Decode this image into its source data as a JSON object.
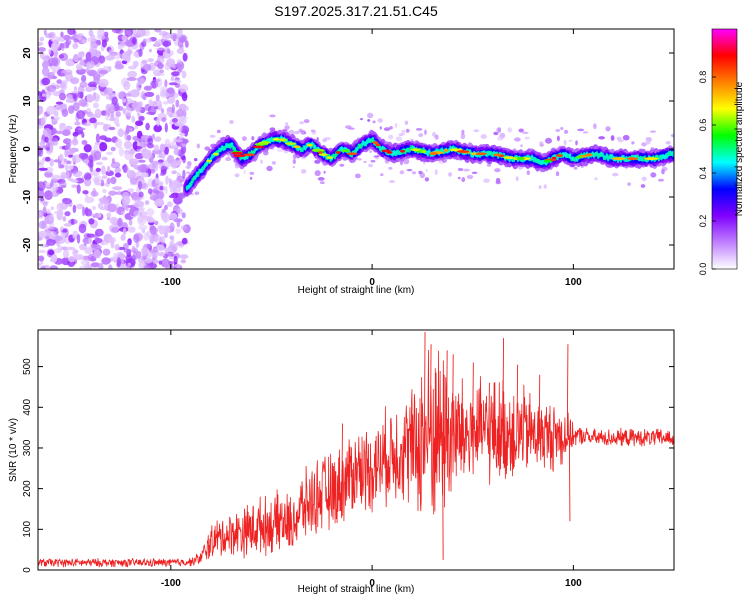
{
  "title": "S197.2025.317.21.51.C45",
  "chart_data": [
    {
      "type": "heatmap",
      "title": "",
      "xlabel": "Height of straight line (km)",
      "ylabel": "Frequency (Hz)",
      "xlim": [
        -166,
        150
      ],
      "ylim": [
        -25,
        25
      ],
      "x_ticks": [
        -100,
        0,
        100
      ],
      "x_tick_labels": [
        "-100",
        "0",
        "100"
      ],
      "y_ticks": [
        -20,
        -10,
        0,
        10,
        20
      ],
      "y_tick_labels": [
        "-20",
        "-10",
        "0",
        "10",
        "20"
      ],
      "ridge": {
        "x": [
          -92,
          -88,
          -84,
          -80,
          -75,
          -70,
          -65,
          -60,
          -55,
          -50,
          -45,
          -40,
          -35,
          -30,
          -25,
          -20,
          -15,
          -10,
          -5,
          0,
          5,
          10,
          20,
          30,
          40,
          50,
          60,
          70,
          80,
          85,
          90,
          95,
          100,
          110,
          120,
          130,
          140,
          150
        ],
        "y": [
          -8,
          -6,
          -4,
          -2,
          0,
          1,
          -2,
          -1,
          1,
          2,
          2,
          1,
          0,
          1,
          -1,
          -2,
          0,
          -1,
          1,
          2,
          0,
          -1,
          0,
          -1,
          0,
          -1,
          -1,
          -2,
          -2,
          -3,
          -2,
          -1,
          -2,
          -1,
          -2,
          -2,
          -2,
          -1
        ]
      },
      "colorbar": {
        "label": "Normalized spectral amplitude",
        "range": [
          0,
          1
        ],
        "ticks": [
          0,
          0.2,
          0.4,
          0.6,
          0.8
        ],
        "tick_labels": [
          "0.0",
          "0.2",
          "0.4",
          "0.6",
          "0.8"
        ],
        "colors": [
          "#ffffff",
          "#c080ff",
          "#8000ff",
          "#0000ff",
          "#00ffff",
          "#00ff00",
          "#ffff00",
          "#ff8000",
          "#ff0000",
          "#ff00ff"
        ]
      }
    },
    {
      "type": "line",
      "title": "",
      "xlabel": "Height of straight line (km)",
      "ylabel": "SNR (10 * v/v)",
      "xlim": [
        -166,
        150
      ],
      "ylim": [
        0,
        590
      ],
      "x_ticks": [
        -100,
        0,
        100
      ],
      "x_tick_labels": [
        "-100",
        "0",
        "100"
      ],
      "y_ticks": [
        0,
        100,
        200,
        300,
        400,
        500
      ],
      "y_tick_labels": [
        "0",
        "100",
        "200",
        "300",
        "400",
        "500"
      ],
      "series": [
        {
          "name": "SNR",
          "color": "#ee2222",
          "x": [
            -166,
            -160,
            -150,
            -140,
            -130,
            -120,
            -110,
            -100,
            -90,
            -85,
            -80,
            -75,
            -70,
            -65,
            -60,
            -55,
            -50,
            -45,
            -40,
            -35,
            -30,
            -25,
            -20,
            -15,
            -10,
            -5,
            0,
            5,
            10,
            15,
            20,
            25,
            30,
            35,
            40,
            45,
            50,
            55,
            60,
            65,
            70,
            75,
            80,
            85,
            90,
            95,
            100,
            105,
            110,
            115,
            120,
            125,
            130,
            135,
            140,
            145,
            150
          ],
          "base": [
            18,
            18,
            18,
            18,
            18,
            18,
            18,
            18,
            20,
            30,
            70,
            80,
            90,
            95,
            100,
            110,
            110,
            120,
            110,
            150,
            170,
            190,
            190,
            210,
            240,
            250,
            250,
            270,
            290,
            300,
            300,
            320,
            340,
            340,
            330,
            330,
            340,
            340,
            340,
            340,
            340,
            340,
            335,
            330,
            330,
            330,
            330,
            330,
            325,
            325,
            325,
            325,
            325,
            325,
            325,
            325,
            325
          ],
          "amp": [
            12,
            12,
            12,
            12,
            12,
            12,
            12,
            12,
            12,
            20,
            50,
            60,
            60,
            70,
            80,
            80,
            80,
            90,
            80,
            100,
            100,
            110,
            110,
            110,
            120,
            120,
            120,
            130,
            140,
            150,
            170,
            240,
            260,
            250,
            200,
            160,
            150,
            140,
            150,
            150,
            140,
            130,
            110,
            100,
            100,
            90,
            30,
            25,
            25,
            25,
            25,
            25,
            25,
            25,
            25,
            25,
            25
          ],
          "spikes": [
            {
              "x": 26,
              "y": 585
            },
            {
              "x": 29,
              "y": 555
            },
            {
              "x": 33,
              "y": 360
            },
            {
              "x": 35,
              "y": 25
            },
            {
              "x": 37,
              "y": 540
            },
            {
              "x": 40,
              "y": 530
            },
            {
              "x": 50,
              "y": 510
            },
            {
              "x": 58,
              "y": 460
            },
            {
              "x": 65,
              "y": 570
            },
            {
              "x": 72,
              "y": 505
            },
            {
              "x": 83,
              "y": 480
            },
            {
              "x": 97,
              "y": 555
            },
            {
              "x": 98,
              "y": 120
            },
            {
              "x": -15,
              "y": 360
            }
          ]
        }
      ]
    }
  ]
}
